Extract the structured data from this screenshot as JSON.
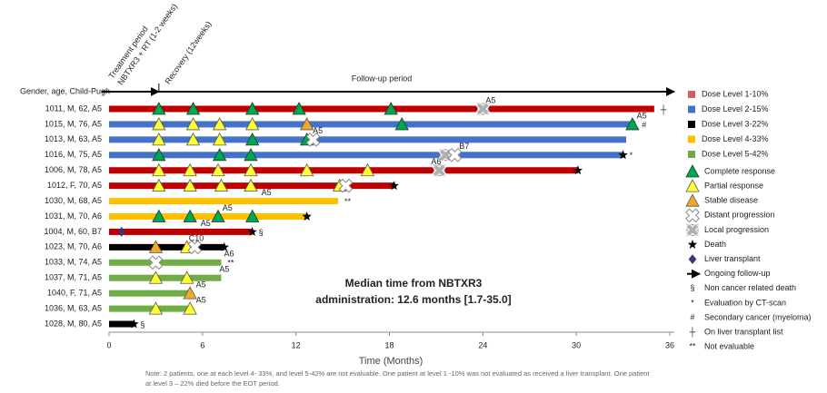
{
  "chart_data": {
    "type": "swimmer",
    "header_label": "Gender, age, Child-Pugh",
    "treatment_period": [
      "Treatment period",
      "NBTXR3 + RT (1-2 weeks)"
    ],
    "recovery": "Recovery (12weeks)",
    "recovery_end": 3.2,
    "followup_label": "Follow-up period",
    "xlabel": "Time (Months)",
    "xlim": [
      0,
      36
    ],
    "xticks": [
      0,
      6,
      12,
      18,
      24,
      30,
      36
    ],
    "median_text": [
      "Median time from NBTXR3",
      "administration:  12.6 months [1.7-35.0]"
    ],
    "note": [
      "Note: 2 patients, one at each level 4- 33%, and level 5-42% are not evaluable. One patient at level 1 -10% was not evaluated as received a liver transplant. One patient",
      "at level 3 – 22% died before the EOT period."
    ],
    "patients": [
      {
        "label": "1011, M, 62, A5",
        "length": 35.0,
        "color": "#c00000",
        "suffix": "┼",
        "markers": [
          {
            "t": 3.2,
            "kind": "complete"
          },
          {
            "t": 5.4,
            "kind": "complete"
          },
          {
            "t": 9.2,
            "kind": "complete"
          },
          {
            "t": 12.2,
            "kind": "complete"
          },
          {
            "t": 18.1,
            "kind": "complete"
          },
          {
            "t": 24.0,
            "kind": "local"
          }
        ],
        "annotations": [
          {
            "t": 24.5,
            "text": "A5"
          }
        ]
      },
      {
        "label": "1015, M, 76, A5",
        "length": 33.8,
        "color": "#4472c4",
        "suffix": "#",
        "markers": [
          {
            "t": 3.2,
            "kind": "partial"
          },
          {
            "t": 5.4,
            "kind": "partial"
          },
          {
            "t": 7.1,
            "kind": "partial"
          },
          {
            "t": 9.2,
            "kind": "partial"
          },
          {
            "t": 12.7,
            "kind": "stable"
          },
          {
            "t": 18.8,
            "kind": "complete"
          },
          {
            "t": 33.6,
            "kind": "complete"
          }
        ],
        "annotations": [
          {
            "t": 34.2,
            "text": "A5"
          }
        ]
      },
      {
        "label": "1013, M, 63, A5",
        "length": 33.2,
        "color": "#4472c4",
        "markers": [
          {
            "t": 3.2,
            "kind": "partial"
          },
          {
            "t": 5.4,
            "kind": "partial"
          },
          {
            "t": 7.1,
            "kind": "partial"
          },
          {
            "t": 9.2,
            "kind": "complete"
          },
          {
            "t": 12.7,
            "kind": "complete"
          },
          {
            "t": 13.1,
            "kind": "distant"
          }
        ],
        "annotations": [
          {
            "t": 13.4,
            "text": "A5"
          }
        ]
      },
      {
        "label": "1016, M, 75, A5",
        "length": 33.0,
        "color": "#4472c4",
        "suffix": "*",
        "markers": [
          {
            "t": 3.2,
            "kind": "complete"
          },
          {
            "t": 7.1,
            "kind": "complete"
          },
          {
            "t": 9.1,
            "kind": "complete"
          },
          {
            "t": 21.6,
            "kind": "local"
          },
          {
            "t": 22.2,
            "kind": "distant"
          },
          {
            "t": 33.0,
            "kind": "death"
          }
        ],
        "annotations": [
          {
            "t": 22.8,
            "text": "B7"
          }
        ]
      },
      {
        "label": "1006, M, 78, A5",
        "length": 30.1,
        "color": "#c00000",
        "markers": [
          {
            "t": 3.2,
            "kind": "partial"
          },
          {
            "t": 5.2,
            "kind": "partial"
          },
          {
            "t": 7.0,
            "kind": "partial"
          },
          {
            "t": 9.1,
            "kind": "partial"
          },
          {
            "t": 12.7,
            "kind": "partial"
          },
          {
            "t": 16.6,
            "kind": "partial"
          },
          {
            "t": 21.2,
            "kind": "local"
          },
          {
            "t": 30.1,
            "kind": "death"
          }
        ],
        "annotations": [
          {
            "t": 21.0,
            "text": "A6"
          }
        ]
      },
      {
        "label": "1012, F, 70, A5",
        "length": 18.3,
        "color": "#c00000",
        "markers": [
          {
            "t": 3.2,
            "kind": "partial"
          },
          {
            "t": 5.2,
            "kind": "partial"
          },
          {
            "t": 7.2,
            "kind": "partial"
          },
          {
            "t": 9.1,
            "kind": "partial"
          },
          {
            "t": 14.8,
            "kind": "partial"
          },
          {
            "t": 15.2,
            "kind": "distant"
          },
          {
            "t": 18.3,
            "kind": "death"
          }
        ],
        "annotations": []
      },
      {
        "label": "1030, M, 68, A5",
        "length": 14.7,
        "color": "#ffc000",
        "suffix": "**",
        "markers": [],
        "annotations": [
          {
            "t": 10.1,
            "text": "A5"
          }
        ]
      },
      {
        "label": "1031, M, 70, A6",
        "length": 12.7,
        "color": "#ffc000",
        "markers": [
          {
            "t": 3.2,
            "kind": "complete"
          },
          {
            "t": 5.2,
            "kind": "complete"
          },
          {
            "t": 7.0,
            "kind": "complete"
          },
          {
            "t": 9.2,
            "kind": "complete"
          },
          {
            "t": 12.7,
            "kind": "death"
          }
        ],
        "annotations": [
          {
            "t": 7.6,
            "text": "A5"
          }
        ]
      },
      {
        "label": "1004, M, 60, B7",
        "length": 9.2,
        "color": "#c00000",
        "suffix": "§",
        "markers": [
          {
            "t": 0.8,
            "kind": "transplant"
          },
          {
            "t": 9.2,
            "kind": "death"
          }
        ],
        "annotations": [
          {
            "t": 6.2,
            "text": "A5"
          }
        ]
      },
      {
        "label": "1023, M, 70, A6",
        "length": 7.4,
        "color": "#000000",
        "markers": [
          {
            "t": 3.0,
            "kind": "stable"
          },
          {
            "t": 5.0,
            "kind": "partial"
          },
          {
            "t": 5.5,
            "kind": "distant"
          },
          {
            "t": 7.4,
            "kind": "death"
          }
        ],
        "annotations": [
          {
            "t": 5.6,
            "text": "C10"
          }
        ]
      },
      {
        "label": "1033, M, 74, A5",
        "length": 7.2,
        "color": "#70ad47",
        "suffix": "**",
        "markers": [
          {
            "t": 3.0,
            "kind": "distant"
          }
        ],
        "annotations": [
          {
            "t": 7.7,
            "text": "A6"
          }
        ]
      },
      {
        "label": "1037, M, 71, A5",
        "length": 7.2,
        "color": "#70ad47",
        "markers": [
          {
            "t": 3.0,
            "kind": "partial"
          },
          {
            "t": 5.0,
            "kind": "partial"
          }
        ],
        "annotations": [
          {
            "t": 7.4,
            "text": "A5"
          }
        ]
      },
      {
        "label": "1040, F, 71, A5",
        "length": 5.3,
        "color": "#70ad47",
        "markers": [
          {
            "t": 5.2,
            "kind": "stable"
          }
        ],
        "annotations": [
          {
            "t": 5.9,
            "text": "A5"
          }
        ]
      },
      {
        "label": "1036, M, 63, A5",
        "length": 5.2,
        "color": "#70ad47",
        "markers": [
          {
            "t": 3.0,
            "kind": "partial"
          },
          {
            "t": 5.2,
            "kind": "partial"
          }
        ],
        "annotations": [
          {
            "t": 5.9,
            "text": "A5"
          }
        ]
      },
      {
        "label": "1028, M, 80, A5",
        "length": 1.6,
        "color": "#000000",
        "suffix": "§",
        "markers": [
          {
            "t": 1.6,
            "kind": "death"
          }
        ],
        "annotations": []
      }
    ],
    "dose_legend": [
      {
        "name": "Dose Level 1-10%",
        "color": "#d65c5c"
      },
      {
        "name": "Dose Level 2-15%",
        "color": "#4472c4"
      },
      {
        "name": "Dose Level 3-22%",
        "color": "#000000"
      },
      {
        "name": "Dose Level 4-33%",
        "color": "#ffc000"
      },
      {
        "name": "Dose Level 5-42%",
        "color": "#70ad47"
      }
    ],
    "symbol_legend": [
      {
        "kind": "complete",
        "label": "Complete response"
      },
      {
        "kind": "partial",
        "label": "Partial response"
      },
      {
        "kind": "stable",
        "label": "Stable disease"
      },
      {
        "kind": "distant",
        "label": "Distant progression"
      },
      {
        "kind": "local",
        "label": "Local progression"
      },
      {
        "kind": "death",
        "label": "Death"
      },
      {
        "kind": "transplant",
        "label": "Liver transplant"
      },
      {
        "kind": "arrow",
        "label": "Ongoing follow-up"
      },
      {
        "symbol": "§",
        "label": "Non cancer related death"
      },
      {
        "symbol": "*",
        "label": "Evaluation by CT-scan"
      },
      {
        "symbol": "#",
        "label": "Secondary cancer (myeloma)"
      },
      {
        "symbol": "┼",
        "label": "On liver transplant list"
      },
      {
        "symbol": "**",
        "label": "Not evaluable"
      }
    ]
  }
}
